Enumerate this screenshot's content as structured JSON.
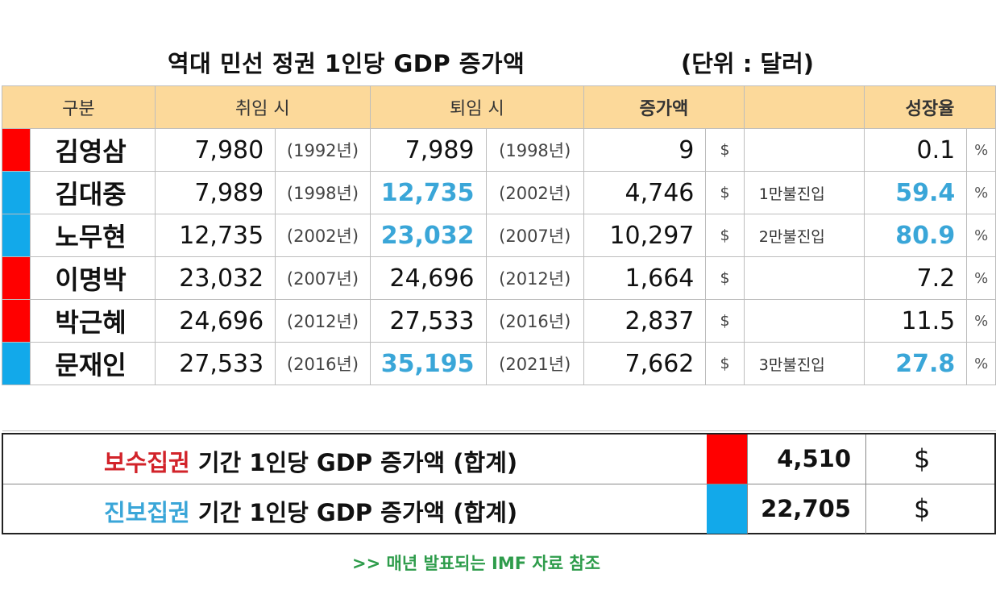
{
  "title": "역대 민선 정권 1인당 GDP 증가액",
  "unit": "(단위 : 달러)",
  "headers": {
    "category": "구분",
    "entry": "취임 시",
    "exit": "퇴임 시",
    "increase": "증가액",
    "growth": "성장율"
  },
  "rows": [
    {
      "name": "김영삼",
      "party_color": "#ff0000",
      "entry_gdp": "7,980",
      "entry_year": "(1992년)",
      "exit_gdp": "7,989",
      "exit_year": "(1998년)",
      "increase": "9",
      "currency": "$",
      "note": "",
      "growth": "0.1",
      "pct": "%"
    },
    {
      "name": "김대중",
      "party_color": "#12a9ea",
      "entry_gdp": "7,989",
      "entry_year": "(1998년)",
      "exit_gdp": "12,735",
      "exit_year": "(2002년)",
      "increase": "4,746",
      "currency": "$",
      "note": "1만불진입",
      "growth": "59.4",
      "pct": "%"
    },
    {
      "name": "노무현",
      "party_color": "#12a9ea",
      "entry_gdp": "12,735",
      "entry_year": "(2002년)",
      "exit_gdp": "23,032",
      "exit_year": "(2007년)",
      "increase": "10,297",
      "currency": "$",
      "note": "2만불진입",
      "growth": "80.9",
      "pct": "%"
    },
    {
      "name": "이명박",
      "party_color": "#ff0000",
      "entry_gdp": "23,032",
      "entry_year": "(2007년)",
      "exit_gdp": "24,696",
      "exit_year": "(2012년)",
      "increase": "1,664",
      "currency": "$",
      "note": "",
      "growth": "7.2",
      "pct": "%"
    },
    {
      "name": "박근혜",
      "party_color": "#ff0000",
      "entry_gdp": "24,696",
      "entry_year": "(2012년)",
      "exit_gdp": "27,533",
      "exit_year": "(2016년)",
      "increase": "2,837",
      "currency": "$",
      "note": "",
      "growth": "11.5",
      "pct": "%"
    },
    {
      "name": "문재인",
      "party_color": "#12a9ea",
      "entry_gdp": "27,533",
      "entry_year": "(2016년)",
      "exit_gdp": "35,195",
      "exit_year": "(2021년)",
      "increase": "7,662",
      "currency": "$",
      "note": "3만불진입",
      "growth": "27.8",
      "pct": "%"
    }
  ],
  "summary": {
    "conservative": {
      "label_colored": "보수집권",
      "label_rest": " 기간  1인당 GDP 증가액 (합계)",
      "value": "4,510",
      "currency": "$",
      "color": "#ff0000"
    },
    "progressive": {
      "label_colored": "진보집권",
      "label_rest": " 기간  1인당 GDP 증가액 (합계)",
      "value": "22,705",
      "currency": "$",
      "color": "#12a9ea"
    }
  },
  "footnote": ">> 매년 발표되는 IMF 자료 참조",
  "colors": {
    "header_bg": "#fcd99a",
    "highlight_blue": "#3aa6d8",
    "conservative_red": "#d2232a",
    "footnote_green": "#2e9c4b"
  }
}
